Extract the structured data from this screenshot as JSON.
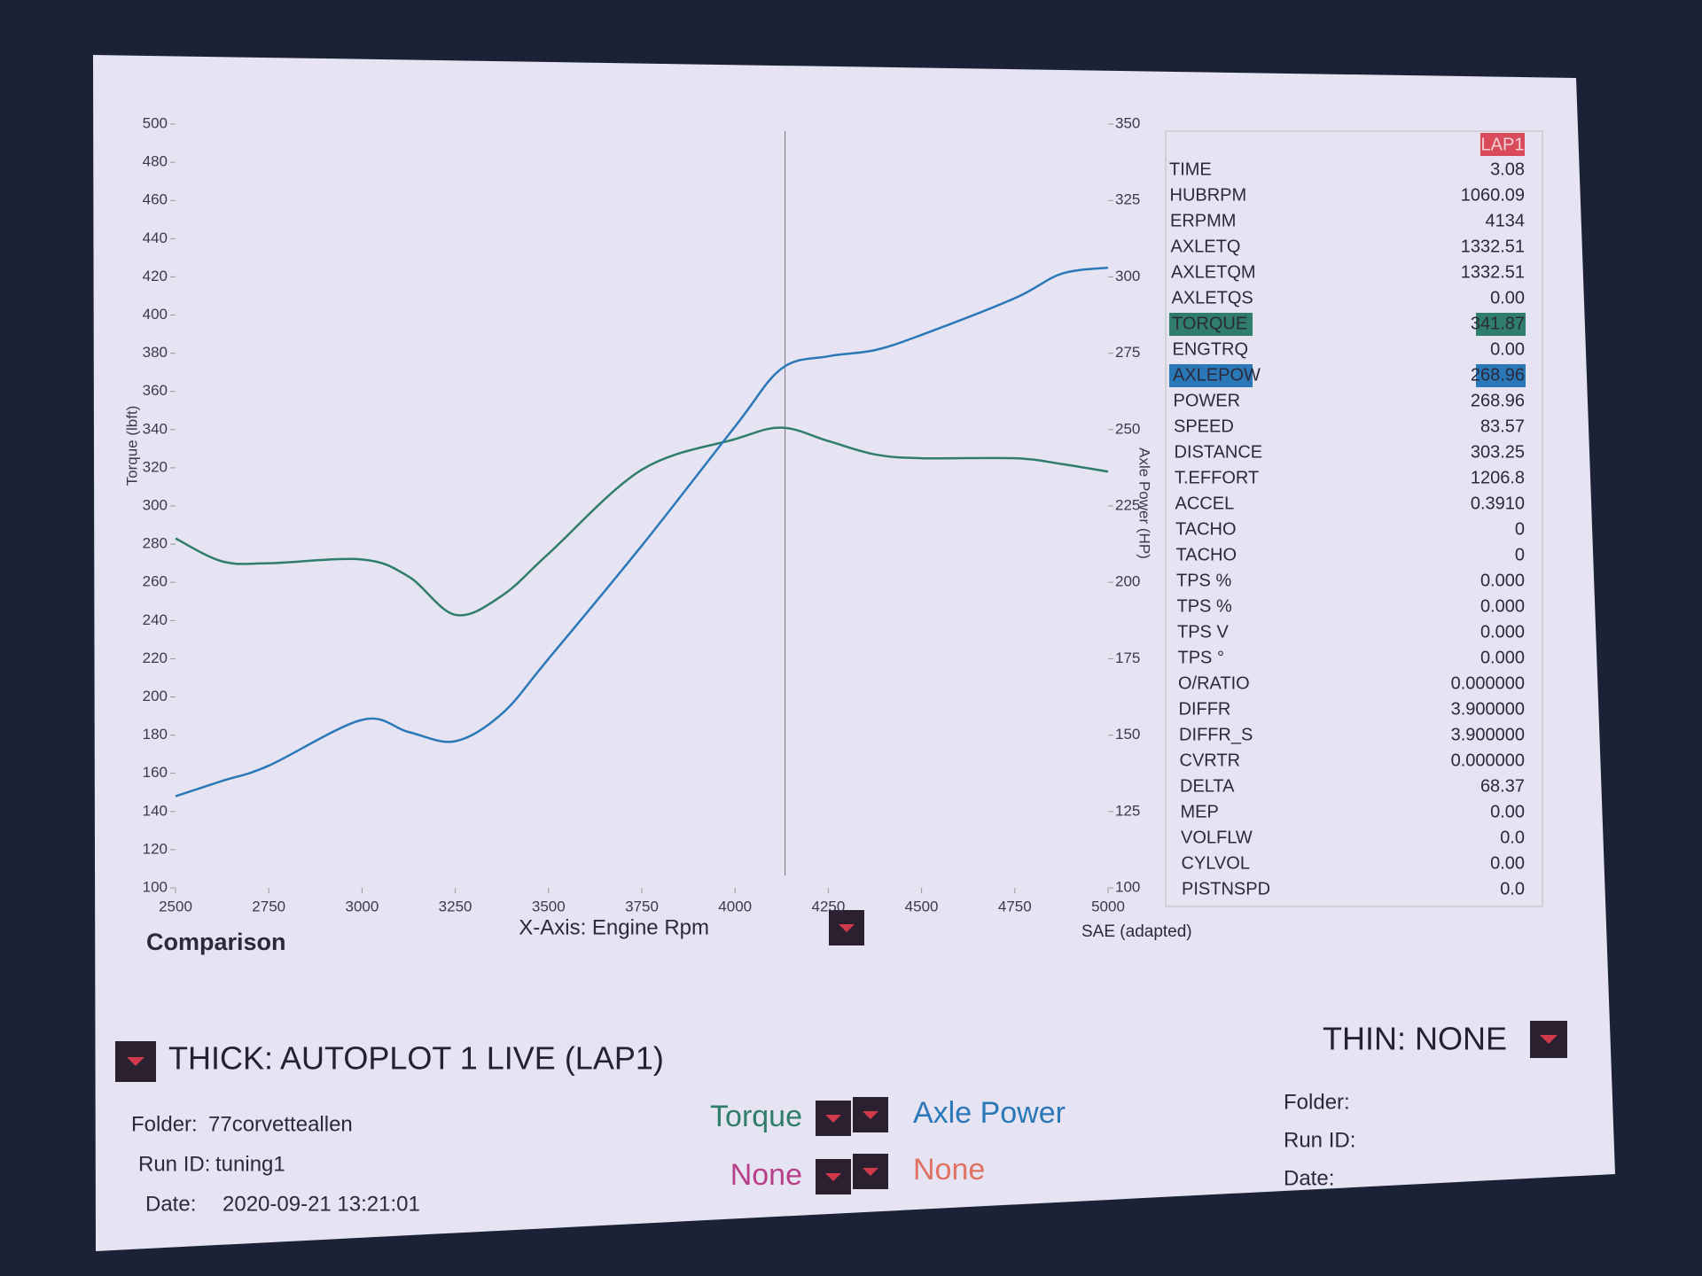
{
  "chart_data": {
    "type": "line",
    "x_label": "X-Axis: Engine Rpm",
    "y_label": "Torque (lbft)",
    "y2_label": "Axle Power (HP)",
    "x": [
      2500,
      2625,
      2750,
      3000,
      3125,
      3250,
      3375,
      3500,
      3750,
      4000,
      4125,
      4250,
      4375,
      4500,
      4750,
      4875,
      5000
    ],
    "series": [
      {
        "name": "Torque",
        "color": "#2f7d6a",
        "values": [
          283,
          271,
          270,
          272,
          263,
          243,
          253,
          275,
          319,
          335,
          341,
          334,
          327,
          325,
          325,
          322,
          318
        ]
      },
      {
        "name": "Axle Power",
        "color": "#2a78b8",
        "axis": "y2",
        "values": [
          130,
          135,
          140,
          155,
          151,
          148,
          157,
          175,
          212,
          251,
          270,
          274,
          276,
          281,
          293,
          301,
          303
        ]
      }
    ],
    "xlim": [
      2500,
      5000
    ],
    "xticks": [
      2500,
      2750,
      3000,
      3250,
      3500,
      3750,
      4000,
      4250,
      4500,
      4750,
      5000
    ],
    "ylim": [
      100,
      500
    ],
    "yticks": [
      100,
      120,
      140,
      160,
      180,
      200,
      220,
      240,
      260,
      280,
      300,
      320,
      340,
      360,
      380,
      400,
      420,
      440,
      460,
      480,
      500
    ],
    "y2lim": [
      100,
      350
    ],
    "y2ticks": [
      100,
      125,
      150,
      175,
      200,
      225,
      250,
      275,
      300,
      325,
      350
    ]
  },
  "panel": {
    "header": "LAP1",
    "rows": [
      [
        "TIME",
        "3.08"
      ],
      [
        "HUBRPM",
        "1060.09"
      ],
      [
        "ERPMM",
        "4134"
      ],
      [
        "AXLETQ",
        "1332.51"
      ],
      [
        "AXLETQM",
        "1332.51"
      ],
      [
        "AXLETQS",
        "0.00"
      ],
      [
        "TORQUE",
        "341.87"
      ],
      [
        "ENGTRQ",
        "0.00"
      ],
      [
        "AXLEPOW",
        "268.96"
      ],
      [
        "POWER",
        "268.96"
      ],
      [
        "SPEED",
        "83.57"
      ],
      [
        "DISTANCE",
        "303.25"
      ],
      [
        "T.EFFORT",
        "1206.8"
      ],
      [
        "ACCEL",
        "0.3910"
      ],
      [
        "TACHO",
        "0"
      ],
      [
        "TACHO",
        "0"
      ],
      [
        "TPS %",
        "0.000"
      ],
      [
        "TPS %",
        "0.000"
      ],
      [
        "TPS V",
        "0.000"
      ],
      [
        "TPS °",
        "0.000"
      ],
      [
        "O/RATIO",
        "0.000000"
      ],
      [
        "DIFFR",
        "3.900000"
      ],
      [
        "DIFFR_S",
        "3.900000"
      ],
      [
        "CVRTR",
        "0.000000"
      ],
      [
        "DELTA",
        "68.37"
      ],
      [
        "MEP",
        "0.00"
      ],
      [
        "VOLFLW",
        "0.0"
      ],
      [
        "CYLVOL",
        "0.00"
      ],
      [
        "PISTNSPD",
        "0.0"
      ]
    ]
  },
  "footer": {
    "comparison": "Comparison",
    "standard": "SAE (adapted)",
    "thick": "THICK: AUTOPLOT 1 LIVE (LAP1)",
    "thin": "THIN: NONE",
    "thick_info": [
      [
        "Folder:",
        "77corvetteallen"
      ],
      [
        "Run ID:",
        "tuning1"
      ],
      [
        "Date:",
        "2020-09-21 13:21:01"
      ]
    ],
    "thin_info": [
      "Folder:",
      "Run ID:",
      "Date:"
    ],
    "selectors": [
      "Torque",
      "Axle Power",
      "None",
      "None"
    ]
  }
}
